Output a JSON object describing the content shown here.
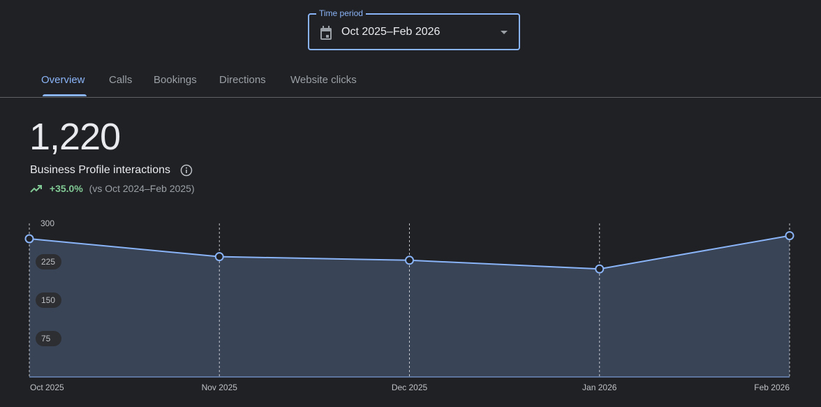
{
  "time_period": {
    "label": "Time period",
    "value": "Oct 2025–Feb 2026"
  },
  "tabs": [
    {
      "label": "Overview",
      "active": true
    },
    {
      "label": "Calls"
    },
    {
      "label": "Bookings"
    },
    {
      "label": "Directions"
    },
    {
      "label": "Website clicks"
    }
  ],
  "summary": {
    "total": "1,220",
    "metric_label": "Business Profile interactions",
    "change": "+35.0%",
    "comparison": "(vs Oct 2024–Feb 2025)",
    "trend_color": "#81c995"
  },
  "chart_data": {
    "type": "area",
    "categories": [
      "Oct 2025",
      "Nov 2025",
      "Dec 2025",
      "Jan 2026",
      "Feb 2026"
    ],
    "values": [
      270,
      235,
      228,
      211,
      276
    ],
    "yticks": [
      "300",
      "225",
      "150",
      "75"
    ],
    "ylim": [
      0,
      300
    ],
    "line_color": "#8ab4f8",
    "fill_color": "#394457",
    "grid": "vertical dashed"
  }
}
